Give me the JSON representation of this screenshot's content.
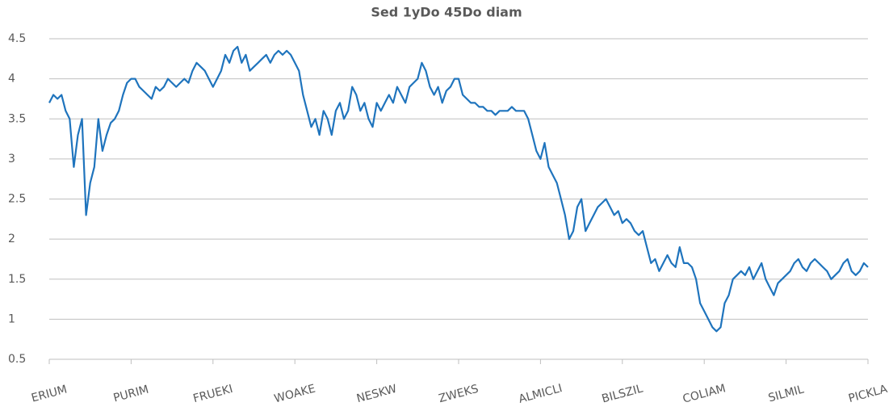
{
  "chart_data": {
    "type": "line",
    "title": "Sed 1yDo 45Do diam",
    "categories": [
      "ERIUM",
      null,
      null,
      null,
      null,
      null,
      null,
      null,
      null,
      null,
      null,
      null,
      null,
      null,
      null,
      null,
      null,
      null,
      null,
      null,
      "PURIM",
      null,
      null,
      null,
      null,
      null,
      null,
      null,
      null,
      null,
      null,
      null,
      null,
      null,
      null,
      null,
      null,
      null,
      null,
      null,
      "FRUEKI",
      null,
      null,
      null,
      null,
      null,
      null,
      null,
      null,
      null,
      null,
      null,
      null,
      null,
      null,
      null,
      null,
      null,
      null,
      null,
      "WOAKE",
      null,
      null,
      null,
      null,
      null,
      null,
      null,
      null,
      null,
      null,
      null,
      null,
      null,
      null,
      null,
      null,
      null,
      null,
      null,
      "NESKW",
      null,
      null,
      null,
      null,
      null,
      null,
      null,
      null,
      null,
      null,
      null,
      null,
      null,
      null,
      null,
      null,
      null,
      null,
      null,
      "ZWEKS",
      null,
      null,
      null,
      null,
      null,
      null,
      null,
      null,
      null,
      null,
      null,
      null,
      null,
      null,
      null,
      null,
      null,
      null,
      null,
      "ALMICLI",
      null,
      null,
      null,
      null,
      null,
      null,
      null,
      null,
      null,
      null,
      null,
      null,
      null,
      null,
      null,
      null,
      null,
      null,
      null,
      "BILSZIL",
      null,
      null,
      null,
      null,
      null,
      null,
      null,
      null,
      null,
      null,
      null,
      null,
      null,
      null,
      null,
      null,
      null,
      null,
      null,
      "COLIAM",
      null,
      null,
      null,
      null,
      null,
      null,
      null,
      null,
      null,
      null,
      null,
      null,
      null,
      null,
      null,
      null,
      null,
      null,
      null,
      "SILMIL",
      null,
      null,
      null,
      null,
      null,
      null,
      null,
      null,
      null,
      null,
      null,
      null,
      null,
      null,
      null,
      null,
      null,
      null,
      null,
      "PICKLA"
    ],
    "values": [
      3.7,
      3.8,
      3.75,
      3.8,
      3.6,
      3.5,
      2.9,
      3.3,
      3.5,
      2.3,
      2.7,
      2.9,
      3.5,
      3.1,
      3.3,
      3.45,
      3.5,
      3.6,
      3.8,
      3.95,
      4.0,
      4.0,
      3.9,
      3.85,
      3.8,
      3.75,
      3.9,
      3.85,
      3.9,
      4.0,
      3.95,
      3.9,
      3.95,
      4.0,
      3.95,
      4.1,
      4.2,
      4.15,
      4.1,
      4.0,
      3.9,
      4.0,
      4.1,
      4.3,
      4.2,
      4.35,
      4.4,
      4.2,
      4.3,
      4.1,
      4.15,
      4.2,
      4.25,
      4.3,
      4.2,
      4.3,
      4.35,
      4.3,
      4.35,
      4.3,
      4.2,
      4.1,
      3.8,
      3.6,
      3.4,
      3.5,
      3.3,
      3.6,
      3.5,
      3.3,
      3.6,
      3.7,
      3.5,
      3.6,
      3.9,
      3.8,
      3.6,
      3.7,
      3.5,
      3.4,
      3.7,
      3.6,
      3.7,
      3.8,
      3.7,
      3.9,
      3.8,
      3.7,
      3.9,
      3.95,
      4.0,
      4.2,
      4.1,
      3.9,
      3.8,
      3.9,
      3.7,
      3.85,
      3.9,
      4.0,
      4.0,
      3.8,
      3.75,
      3.7,
      3.7,
      3.65,
      3.65,
      3.6,
      3.6,
      3.55,
      3.6,
      3.6,
      3.6,
      3.65,
      3.6,
      3.6,
      3.6,
      3.5,
      3.3,
      3.1,
      3.0,
      3.2,
      2.9,
      2.8,
      2.7,
      2.5,
      2.3,
      2.0,
      2.1,
      2.4,
      2.5,
      2.1,
      2.2,
      2.3,
      2.4,
      2.45,
      2.5,
      2.4,
      2.3,
      2.35,
      2.2,
      2.25,
      2.2,
      2.1,
      2.05,
      2.1,
      1.9,
      1.7,
      1.75,
      1.6,
      1.7,
      1.8,
      1.7,
      1.65,
      1.9,
      1.7,
      1.7,
      1.65,
      1.5,
      1.2,
      1.1,
      1.0,
      0.9,
      0.85,
      0.9,
      1.2,
      1.3,
      1.5,
      1.55,
      1.6,
      1.55,
      1.65,
      1.5,
      1.6,
      1.7,
      1.5,
      1.4,
      1.3,
      1.45,
      1.5,
      1.55,
      1.6,
      1.7,
      1.75,
      1.65,
      1.6,
      1.7,
      1.75,
      1.7,
      1.65,
      1.6,
      1.5,
      1.55,
      1.6,
      1.7,
      1.75,
      1.6,
      1.55,
      1.6,
      1.7,
      1.65
    ],
    "color": "#1f74bd",
    "ylim": [
      0.5,
      4.5
    ],
    "yticks": [
      0.5,
      1,
      1.5,
      2,
      2.5,
      3,
      3.5,
      4,
      4.5
    ],
    "grid": true
  }
}
